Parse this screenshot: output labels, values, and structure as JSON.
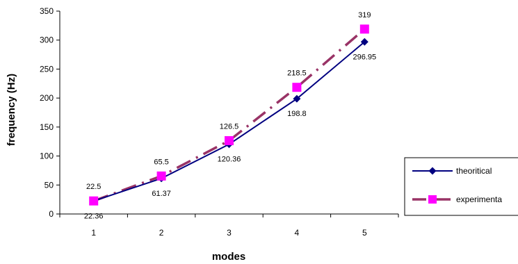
{
  "chart_data": {
    "type": "line",
    "title": "",
    "xlabel": "modes",
    "ylabel": "frequency (Hz)",
    "categories": [
      "1",
      "2",
      "3",
      "4",
      "5"
    ],
    "ylim": [
      0,
      350
    ],
    "yticks": [
      0,
      50,
      100,
      150,
      200,
      250,
      300,
      350
    ],
    "grid": false,
    "legend": "right",
    "series": [
      {
        "name": "theoritical",
        "values": [
          22.36,
          61.37,
          120.36,
          198.8,
          296.95
        ],
        "labels": [
          "22.36",
          "61.37",
          "120.36",
          "198.8",
          "296.95"
        ],
        "color": "#000080",
        "marker": "diamond",
        "line": "solid"
      },
      {
        "name": "experimenta",
        "values": [
          22.5,
          65.5,
          126.5,
          218.5,
          319
        ],
        "labels": [
          "22.5",
          "65.5",
          "126.5",
          "218.5",
          "319"
        ],
        "color": "#993366",
        "marker_color": "#FF00FF",
        "marker": "square",
        "line": "dash-dot"
      }
    ]
  }
}
